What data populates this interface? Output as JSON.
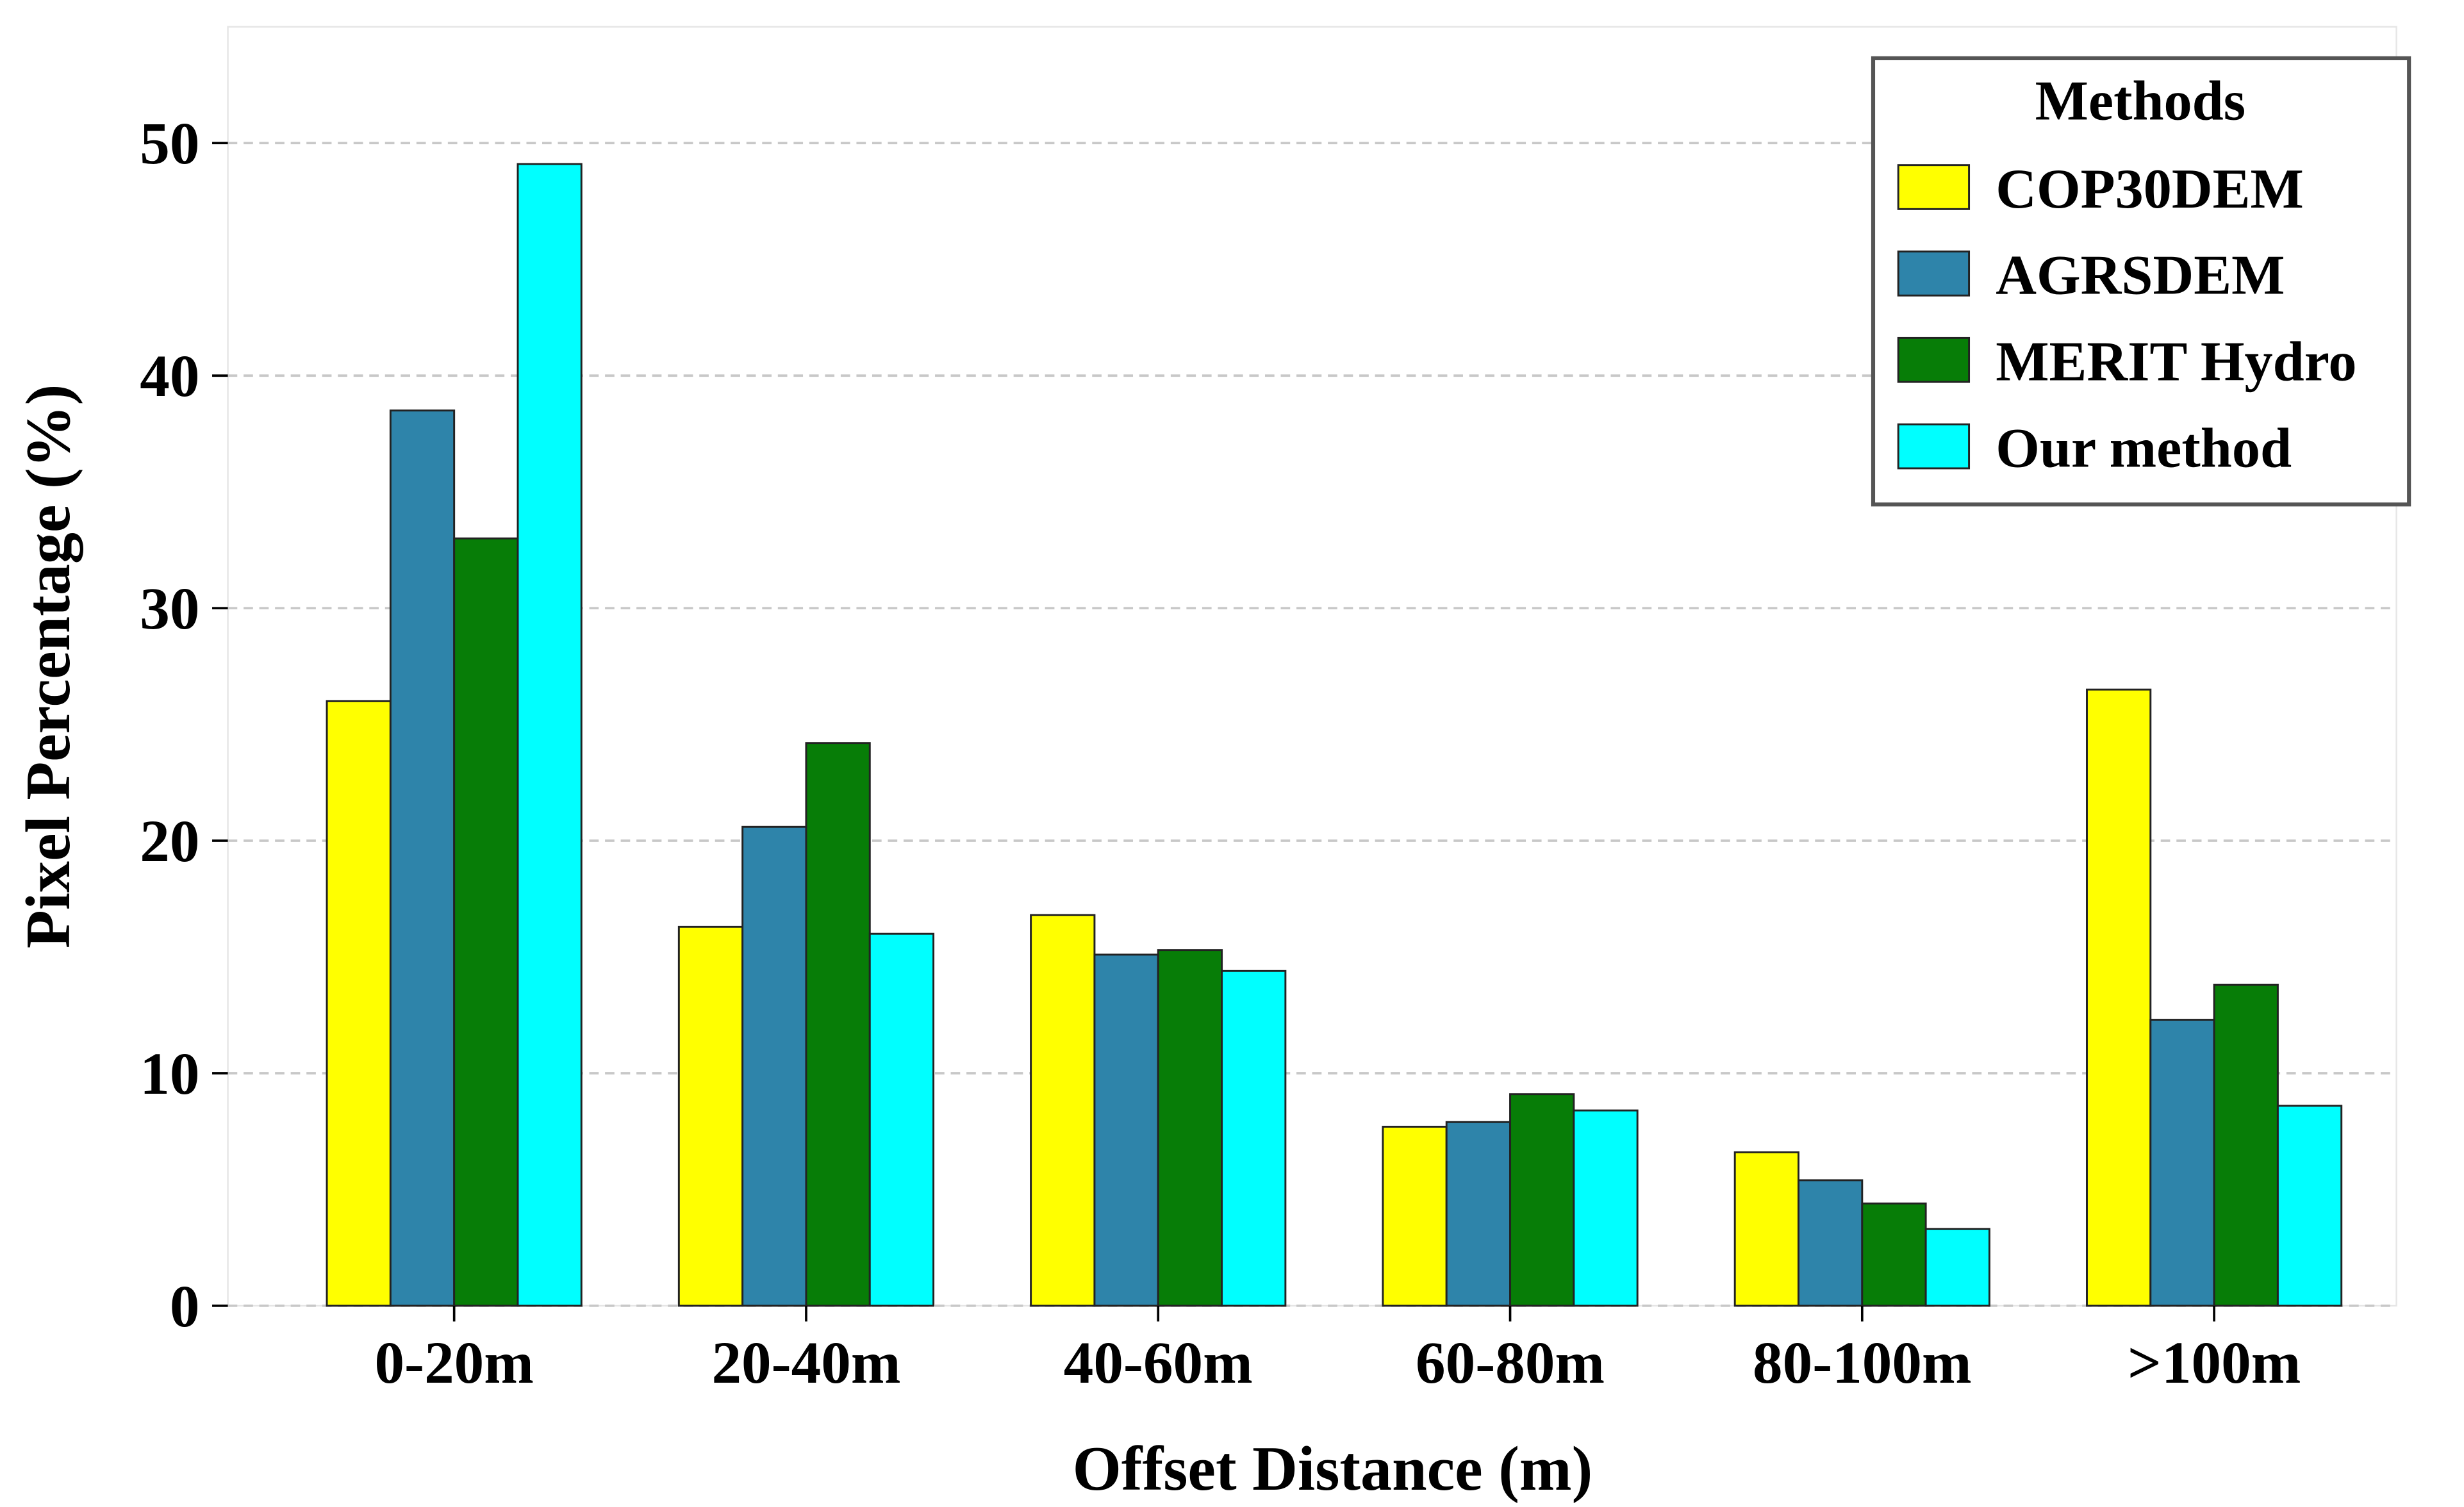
{
  "chart_data": {
    "type": "bar",
    "x_label": "Offset Distance (m)",
    "y_label": "Pixel Percentage (%)",
    "categories": [
      "0-20m",
      "20-40m",
      "40-60m",
      "60-80m",
      "80-100m",
      ">100m"
    ],
    "series": [
      {
        "name": "COP30DEM",
        "color": "#ffff00",
        "values": [
          26.0,
          16.3,
          16.8,
          7.7,
          6.6,
          26.5
        ]
      },
      {
        "name": "AGRSDEM",
        "color": "#2e84aa",
        "values": [
          38.5,
          20.6,
          15.1,
          7.9,
          5.4,
          12.3
        ]
      },
      {
        "name": "MERIT Hydro",
        "color": "#077d07",
        "values": [
          33.0,
          24.2,
          15.3,
          9.1,
          4.4,
          13.8
        ]
      },
      {
        "name": "Our method",
        "color": "#00ffff",
        "values": [
          49.1,
          16.0,
          14.4,
          8.4,
          3.3,
          8.6
        ]
      }
    ],
    "legend_title": "Methods",
    "legend_position": "upper right",
    "ylim": [
      0,
      55
    ],
    "yticks": [
      0,
      10,
      20,
      30,
      40,
      50
    ],
    "grid": true
  }
}
